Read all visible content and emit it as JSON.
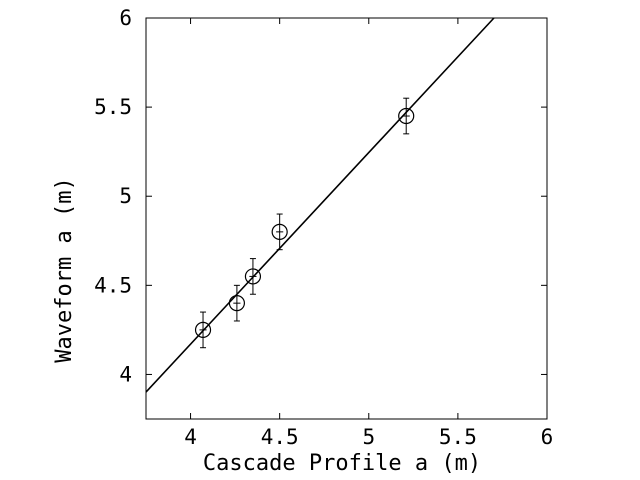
{
  "chart_data": {
    "type": "scatter",
    "title": "",
    "xlabel": "Cascade Profile a (m)",
    "ylabel": "Waveform a (m)",
    "xlim": [
      3.75,
      6.0
    ],
    "ylim": [
      3.75,
      6.0
    ],
    "xticks": [
      4,
      4.5,
      5,
      5.5,
      6
    ],
    "yticks": [
      4,
      4.5,
      5,
      5.5,
      6
    ],
    "xtick_labels": [
      "4",
      "4.5",
      "5",
      "5.5",
      "6"
    ],
    "ytick_labels": [
      "4",
      "4.5",
      "5",
      "5.5",
      "6"
    ],
    "grid": false,
    "marker": "open-circle",
    "points": [
      {
        "x": 4.07,
        "y": 4.25,
        "xerr": 0.02,
        "yerr": 0.1
      },
      {
        "x": 4.26,
        "y": 4.4,
        "xerr": 0.02,
        "yerr": 0.1
      },
      {
        "x": 4.35,
        "y": 4.55,
        "xerr": 0.02,
        "yerr": 0.1
      },
      {
        "x": 4.5,
        "y": 4.8,
        "xerr": 0.02,
        "yerr": 0.1
      },
      {
        "x": 5.21,
        "y": 5.45,
        "xerr": 0.02,
        "yerr": 0.1
      }
    ],
    "fit_line": {
      "slope": 1.075,
      "intercept": -0.13
    }
  }
}
